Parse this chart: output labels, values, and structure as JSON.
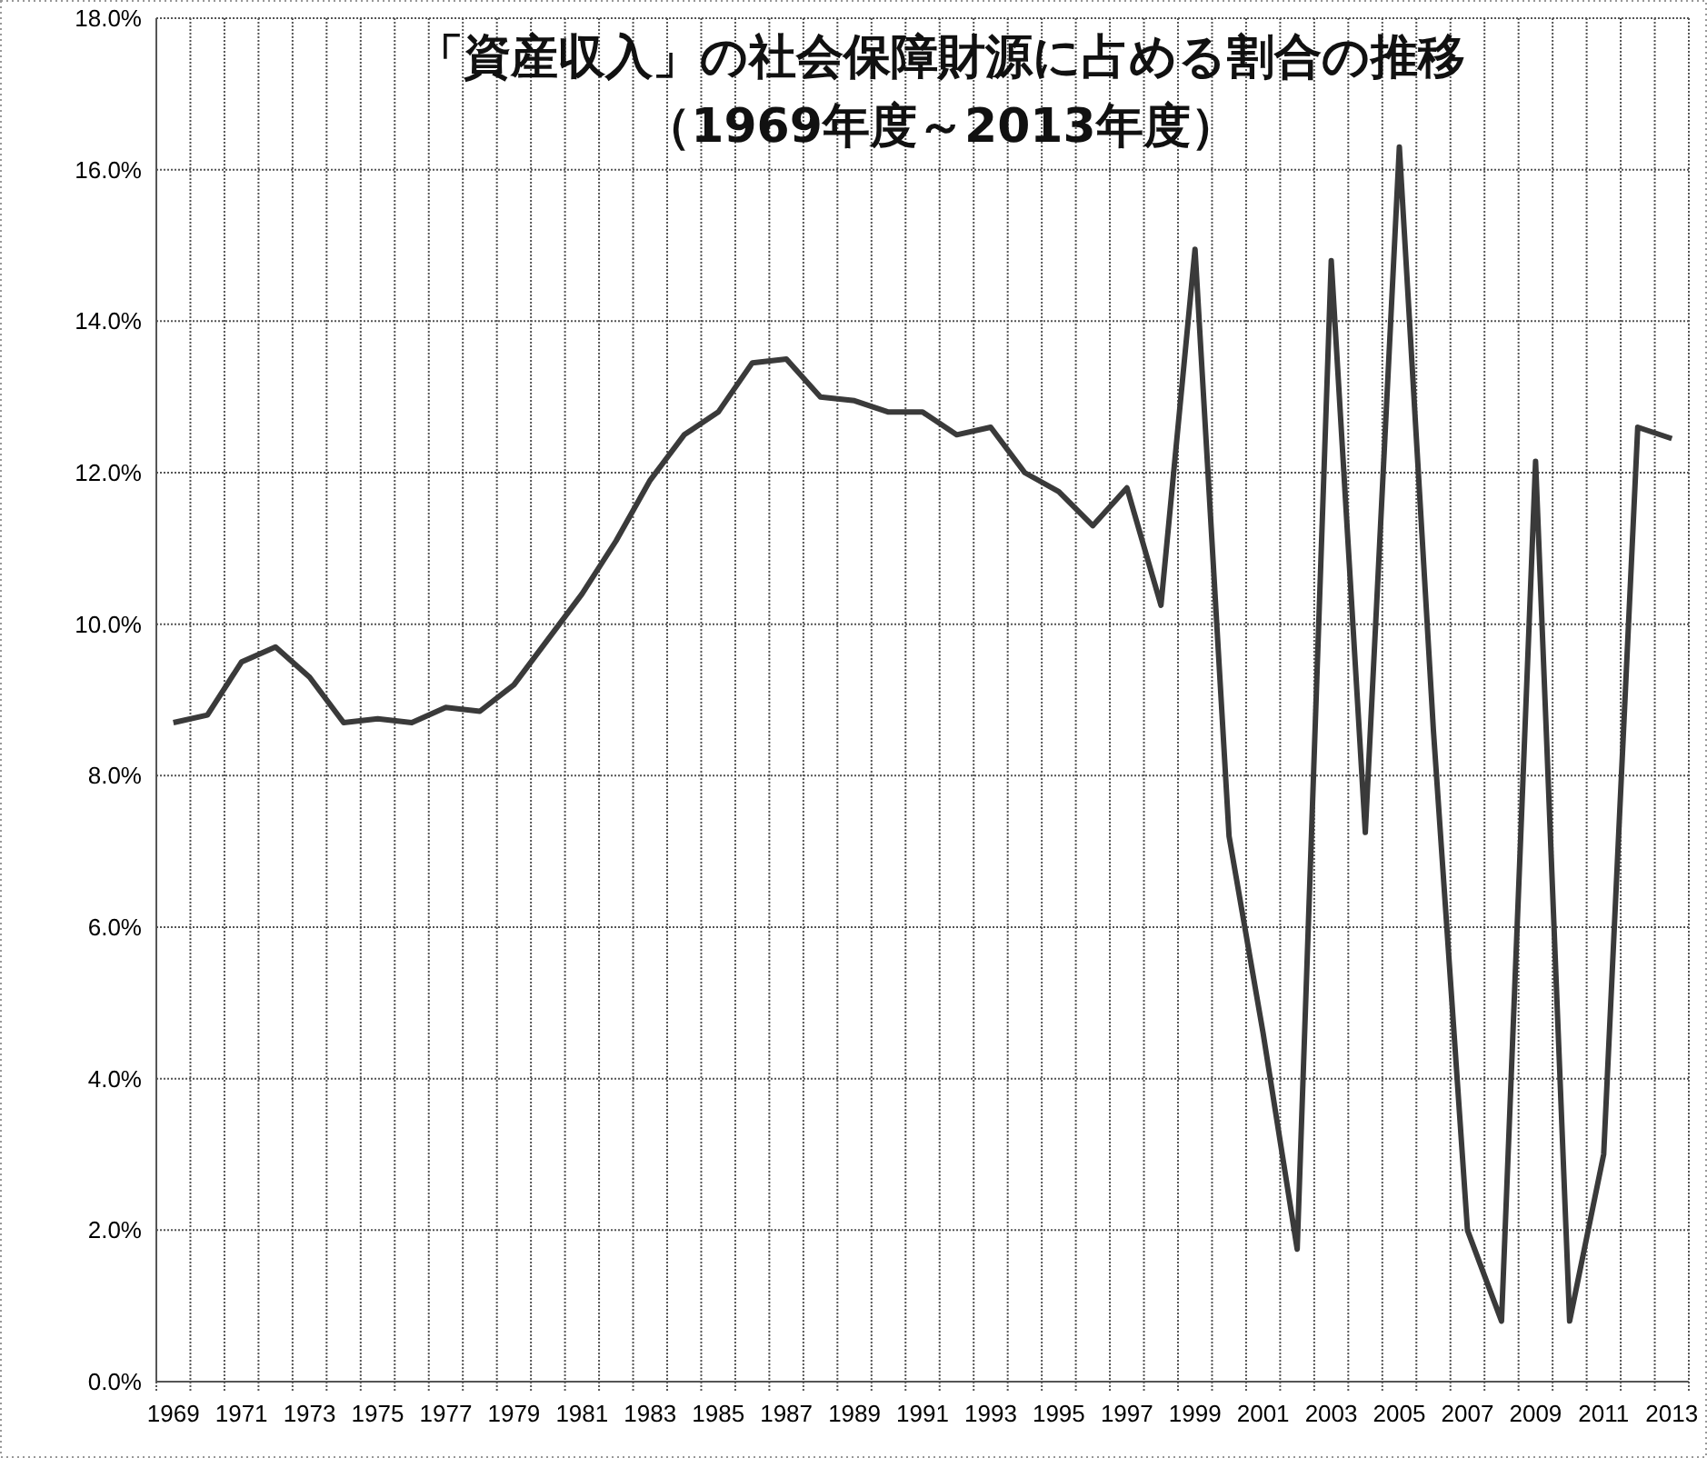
{
  "chart_data": {
    "type": "line",
    "title": "「資産収入」の社会保障財源に占める割合の推移",
    "subtitle": "（1969年度～2013年度）",
    "categories": [
      "1969",
      null,
      "1971",
      null,
      "1973",
      null,
      "1975",
      null,
      "1977",
      null,
      "1979",
      null,
      "1981",
      null,
      "1983",
      null,
      "1985",
      null,
      "1987",
      null,
      "1989",
      null,
      "1991",
      null,
      "1993",
      null,
      "1995",
      null,
      "1997",
      null,
      "1999",
      null,
      "2001",
      null,
      "2003",
      null,
      "2005",
      null,
      "2007",
      null,
      "2009",
      null,
      "2011",
      null,
      "2013"
    ],
    "series": [
      {
        "color": "#3a3a3a",
        "values": [
          8.7,
          8.8,
          9.5,
          9.7,
          9.3,
          8.7,
          8.75,
          8.7,
          8.9,
          8.85,
          9.2,
          9.8,
          10.4,
          11.1,
          11.9,
          12.5,
          12.8,
          13.45,
          13.5,
          13.0,
          12.95,
          12.8,
          12.8,
          12.5,
          12.6,
          12.0,
          11.75,
          11.3,
          11.8,
          10.25,
          14.95,
          7.2,
          4.6,
          1.75,
          14.8,
          7.25,
          16.3,
          8.6,
          2.0,
          0.8,
          12.15,
          0.8,
          3.0,
          12.6,
          12.45
        ]
      }
    ],
    "ylim": [
      0,
      18
    ],
    "yticks": [
      {
        "value": 0,
        "label": "0.0%"
      },
      {
        "value": 2,
        "label": "2.0%"
      },
      {
        "value": 4,
        "label": "4.0%"
      },
      {
        "value": 6,
        "label": "6.0%"
      },
      {
        "value": 8,
        "label": "8.0%"
      },
      {
        "value": 10,
        "label": "10.0%"
      },
      {
        "value": 12,
        "label": "12.0%"
      },
      {
        "value": 14,
        "label": "14.0%"
      },
      {
        "value": 16,
        "label": "16.0%"
      },
      {
        "value": 18,
        "label": "18.0%"
      }
    ],
    "grid": true,
    "marker": "none",
    "line_style": "solid"
  }
}
